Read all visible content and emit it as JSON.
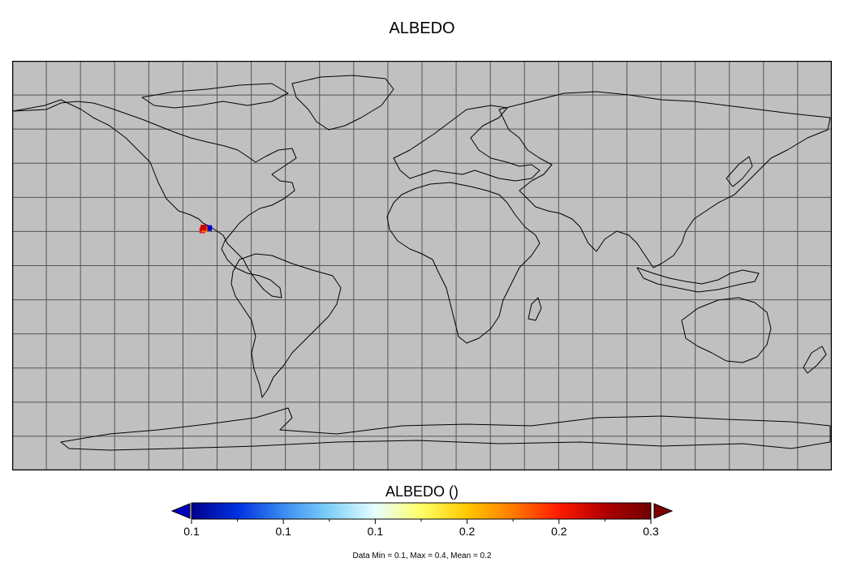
{
  "title": "ALBEDO",
  "map": {
    "projection": "equirectangular",
    "background_color": "#c0c0c0",
    "grid_color": "#555555",
    "coastline_color": "#000000",
    "lon_range": [
      -180,
      180
    ],
    "lat_range": [
      -90,
      90
    ],
    "grid_step_degrees": 15,
    "data_patches": [
      {
        "name": "albedo-patch-low",
        "lon": -93.5,
        "lat": 16.5,
        "value": 0.1,
        "color": "#0000c8"
      },
      {
        "name": "albedo-patch-high-1",
        "lon": -96.5,
        "lat": 15.5,
        "value": 0.3,
        "color": "#e41a1c"
      },
      {
        "name": "albedo-patch-high-2",
        "lon": -95.5,
        "lat": 16.0,
        "value": 0.25,
        "color": "#ff6a00"
      },
      {
        "name": "albedo-patch-high-3",
        "lon": -96.0,
        "lat": 16.7,
        "value": 0.3,
        "color": "#cc0000"
      }
    ]
  },
  "colorbar": {
    "title": "ALBEDO ()",
    "tick_labels": [
      "0.1",
      "0.1",
      "0.1",
      "0.2",
      "0.2",
      "0.3"
    ],
    "colors": [
      "#00008b",
      "#0030e0",
      "#3a8cf0",
      "#7fd0f8",
      "#e6ffff",
      "#ffff66",
      "#ffc800",
      "#ff7a00",
      "#ff1a00",
      "#b00000",
      "#700000"
    ],
    "under_color": "#0000c0",
    "over_color": "#800000"
  },
  "stats": "Data Min = 0.1, Max = 0.4, Mean = 0.2"
}
